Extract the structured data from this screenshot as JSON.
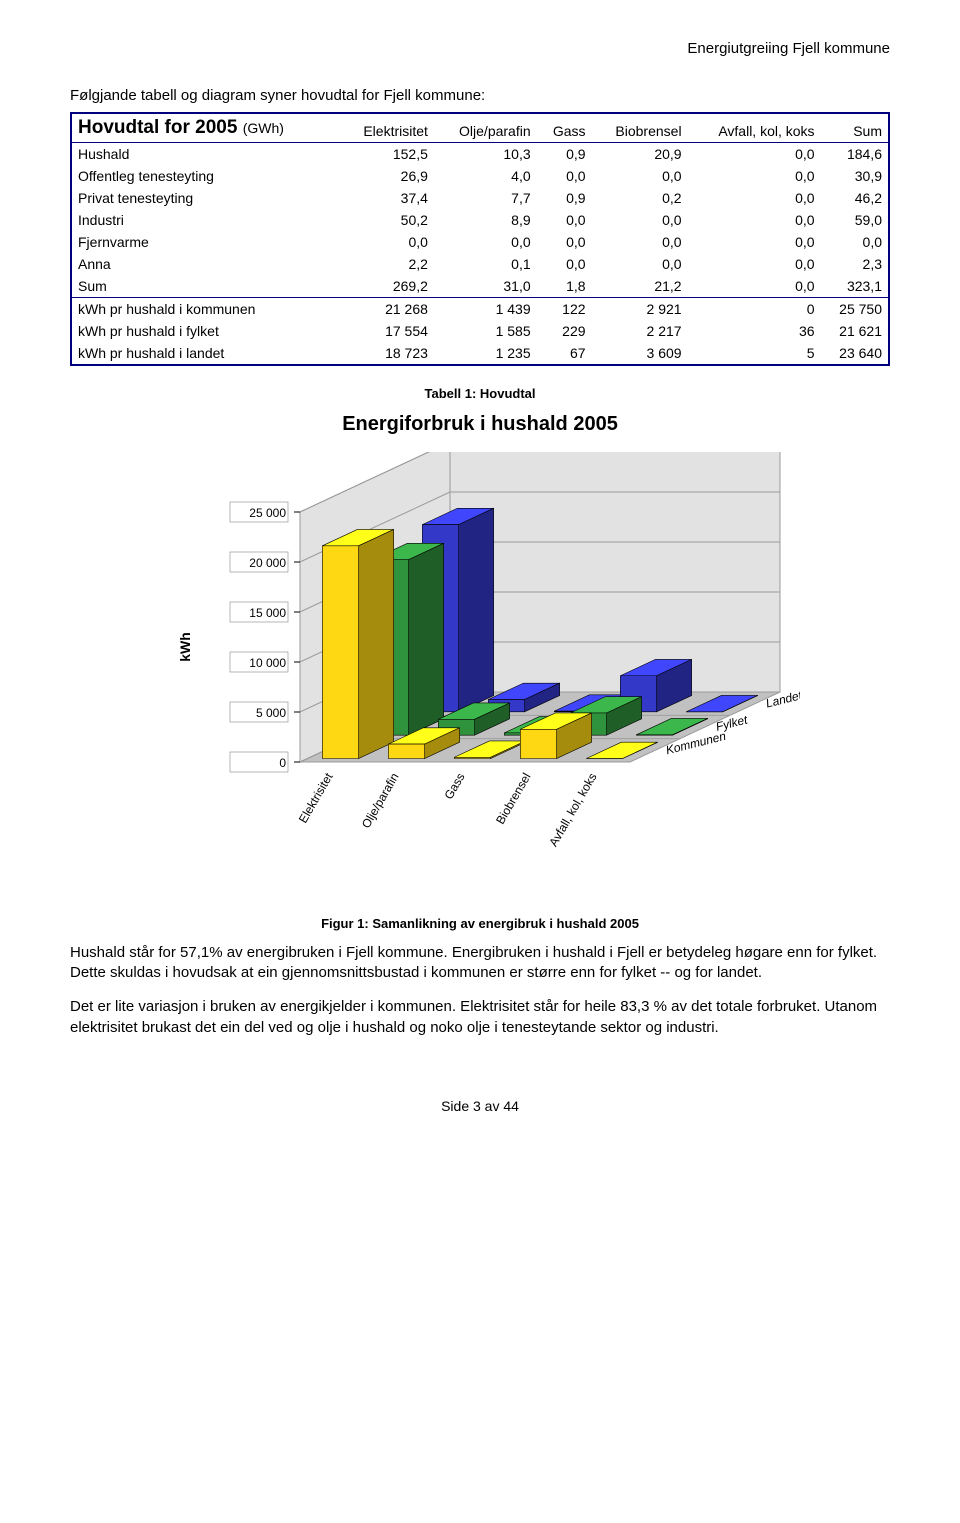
{
  "header_right": "Energiutgreiing Fjell kommune",
  "intro_text": "Følgjande tabell og diagram syner hovudtal for Fjell kommune:",
  "table": {
    "title_main": "Hovudtal for 2005",
    "title_unit": "(GWh)",
    "columns": [
      "",
      "Elektrisitet",
      "Olje/parafin",
      "Gass",
      "Biobrensel",
      "Avfall, kol, koks",
      "Sum"
    ],
    "section1": [
      [
        "Hushald",
        "152,5",
        "10,3",
        "0,9",
        "20,9",
        "0,0",
        "184,6"
      ],
      [
        "Offentleg tenesteyting",
        "26,9",
        "4,0",
        "0,0",
        "0,0",
        "0,0",
        "30,9"
      ],
      [
        "Privat tenesteyting",
        "37,4",
        "7,7",
        "0,9",
        "0,2",
        "0,0",
        "46,2"
      ],
      [
        "Industri",
        "50,2",
        "8,9",
        "0,0",
        "0,0",
        "0,0",
        "59,0"
      ],
      [
        "Fjernvarme",
        "0,0",
        "0,0",
        "0,0",
        "0,0",
        "0,0",
        "0,0"
      ],
      [
        "Anna",
        "2,2",
        "0,1",
        "0,0",
        "0,0",
        "0,0",
        "2,3"
      ],
      [
        "Sum",
        "269,2",
        "31,0",
        "1,8",
        "21,2",
        "0,0",
        "323,1"
      ]
    ],
    "section2": [
      [
        "kWh pr hushald i kommunen",
        "21 268",
        "1 439",
        "122",
        "2 921",
        "0",
        "25 750"
      ],
      [
        "kWh pr hushald i fylket",
        "17 554",
        "1 585",
        "229",
        "2 217",
        "36",
        "21 621"
      ],
      [
        "kWh pr hushald i landet",
        "18 723",
        "1 235",
        "67",
        "3 609",
        "5",
        "23 640"
      ]
    ]
  },
  "caption_table": "Tabell 1: Hovudtal",
  "chart": {
    "title": "Energiforbruk i hushald 2005",
    "type": "3d-bar",
    "y_label": "kWh",
    "y_label_fontsize": 14,
    "y_ticks": [
      0,
      5000,
      10000,
      15000,
      20000,
      25000
    ],
    "y_tick_labels": [
      "0",
      "5 000",
      "10 000",
      "15 000",
      "20 000",
      "25 000"
    ],
    "ylim": [
      0,
      25000
    ],
    "x_categories": [
      "Elektrisitet",
      "Olje/parafin",
      "Gass",
      "Biobrensel",
      "Avfall, kol, koks"
    ],
    "z_series": [
      "Kommunen",
      "Fylket",
      "Landet"
    ],
    "z_colors": [
      "#ffd814",
      "#2f923c",
      "#3338c9"
    ],
    "values": {
      "Kommunen": [
        21268,
        1439,
        122,
        2921,
        0
      ],
      "Fylket": [
        17554,
        1585,
        229,
        2217,
        36
      ],
      "Landet": [
        18723,
        1235,
        67,
        3609,
        5
      ]
    },
    "background_color": "#ffffff",
    "floor_color": "#c1c1c1",
    "wall_color": "#e2e2e2",
    "grid_color": "#9b9b9b",
    "axis_font_size": 12,
    "title_fontsize": 20
  },
  "caption_figure": "Figur 1: Samanlikning av energibruk i hushald 2005",
  "paragraphs": [
    "Hushald står for 57,1% av energibruken i Fjell kommune. Energibruken i hushald i Fjell er betydeleg høgare enn for fylket. Dette skuldas i hovudsak at ein gjennomsnittsbustad i kommunen er større enn for fylket -- og for landet.",
    "Det er lite variasjon i bruken av energikjelder i kommunen. Elektrisitet står for heile 83,3 % av det totale forbruket. Utanom elektrisitet brukast det ein del ved og olje i hushald og noko olje i tenesteytande sektor og industri."
  ],
  "footer": "Side 3 av 44"
}
